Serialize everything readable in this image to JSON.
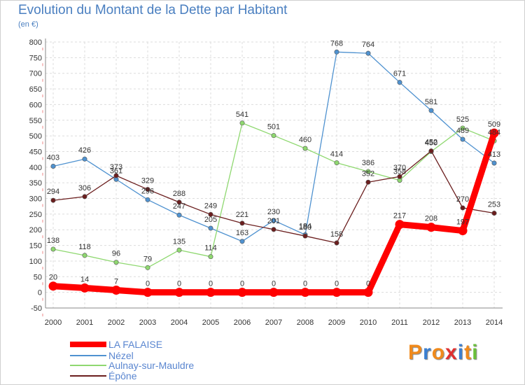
{
  "title": "Evolution du Montant de la Dette par Habitant",
  "unit": "(en €)",
  "logo": "Proxiti",
  "chart_data": {
    "type": "line",
    "title": "Evolution du Montant de la Dette par Habitant",
    "ylabel": "(en €)",
    "xlabel": "",
    "x": [
      "2000",
      "2001",
      "2002",
      "2003",
      "2004",
      "2005",
      "2006",
      "2007",
      "2008",
      "2009",
      "2010",
      "2011",
      "2012",
      "2013",
      "2014"
    ],
    "yticks": [
      -50,
      0,
      50,
      100,
      150,
      200,
      250,
      300,
      350,
      400,
      450,
      500,
      550,
      600,
      650,
      700,
      750,
      800
    ],
    "ylim": [
      -50,
      800
    ],
    "grid": true,
    "legend_position": "bottom-left",
    "series": [
      {
        "name": "LA FALAISE",
        "color": "#ff0000",
        "values": [
          20,
          14,
          7,
          0,
          0,
          0,
          0,
          0,
          0,
          0,
          0,
          217,
          208,
          197,
          509
        ]
      },
      {
        "name": "Nézel",
        "color": "#4f92d0",
        "values": [
          403,
          426,
          361,
          296,
          247,
          205,
          163,
          230,
          184,
          768,
          764,
          671,
          581,
          489,
          413
        ]
      },
      {
        "name": "Aulnay-sur-Mauldre",
        "color": "#8fd870",
        "values": [
          138,
          118,
          96,
          79,
          135,
          114,
          541,
          501,
          460,
          414,
          386,
          358,
          450,
          525,
          484
        ]
      },
      {
        "name": "Épône",
        "color": "#6b1e1e",
        "values": [
          294,
          306,
          373,
          329,
          288,
          249,
          221,
          201,
          180,
          158,
          352,
          370,
          452,
          270,
          253
        ]
      }
    ]
  }
}
